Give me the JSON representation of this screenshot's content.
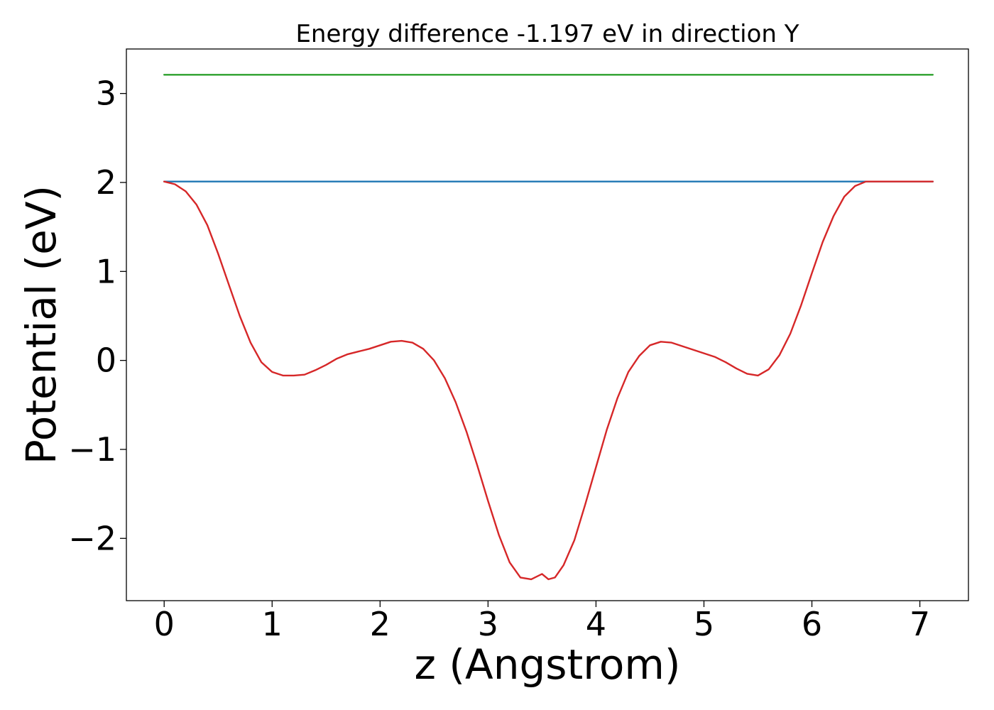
{
  "chart_data": {
    "type": "line",
    "title": "Energy difference -1.197 eV in direction Y",
    "xlabel": "z (Angstrom)",
    "ylabel": "Potential (eV)",
    "xlim": [
      -0.35,
      7.45
    ],
    "ylim": [
      -2.7,
      3.5
    ],
    "xticks": [
      0,
      1,
      2,
      3,
      4,
      5,
      6,
      7
    ],
    "xtick_labels": [
      "0",
      "1",
      "2",
      "3",
      "4",
      "5",
      "6",
      "7"
    ],
    "yticks": [
      -2,
      -1,
      0,
      1,
      2,
      3
    ],
    "ytick_labels": [
      "−2",
      "−1",
      "0",
      "1",
      "2",
      "3"
    ],
    "grid": false,
    "series": [
      {
        "color": "#2ca02c",
        "x": [
          0,
          7.12
        ],
        "y": [
          3.21,
          3.21
        ]
      },
      {
        "color": "#1f77b4",
        "x": [
          0,
          7.12
        ],
        "y": [
          2.01,
          2.01
        ]
      },
      {
        "color": "#d62728",
        "x": [
          0,
          0.1,
          0.2,
          0.3,
          0.4,
          0.5,
          0.6,
          0.7,
          0.8,
          0.9,
          1.0,
          1.1,
          1.2,
          1.3,
          1.4,
          1.5,
          1.6,
          1.7,
          1.8,
          1.9,
          2.0,
          2.1,
          2.2,
          2.3,
          2.4,
          2.5,
          2.6,
          2.7,
          2.8,
          2.9,
          3.0,
          3.1,
          3.2,
          3.3,
          3.4,
          3.5,
          3.56,
          3.62,
          3.7,
          3.8,
          3.9,
          4.0,
          4.1,
          4.2,
          4.3,
          4.4,
          4.5,
          4.6,
          4.7,
          4.8,
          4.9,
          5.0,
          5.1,
          5.2,
          5.3,
          5.4,
          5.5,
          5.6,
          5.7,
          5.8,
          5.9,
          6.0,
          6.1,
          6.2,
          6.3,
          6.4,
          6.5,
          6.6,
          6.7,
          6.8,
          6.9,
          7.0,
          7.12
        ],
        "y": [
          2.01,
          1.98,
          1.9,
          1.75,
          1.52,
          1.2,
          0.85,
          0.5,
          0.2,
          -0.02,
          -0.13,
          -0.17,
          -0.17,
          -0.16,
          -0.11,
          -0.05,
          0.02,
          0.07,
          0.1,
          0.13,
          0.17,
          0.21,
          0.22,
          0.2,
          0.13,
          0.0,
          -0.2,
          -0.47,
          -0.8,
          -1.18,
          -1.58,
          -1.96,
          -2.27,
          -2.44,
          -2.46,
          -2.4,
          -2.46,
          -2.44,
          -2.3,
          -2.02,
          -1.62,
          -1.2,
          -0.78,
          -0.42,
          -0.13,
          0.05,
          0.17,
          0.21,
          0.2,
          0.16,
          0.12,
          0.08,
          0.04,
          -0.02,
          -0.09,
          -0.15,
          -0.17,
          -0.1,
          0.06,
          0.3,
          0.62,
          0.98,
          1.33,
          1.62,
          1.84,
          1.96,
          2.01,
          2.01,
          2.01,
          2.01,
          2.01,
          2.01,
          2.01
        ]
      }
    ]
  }
}
